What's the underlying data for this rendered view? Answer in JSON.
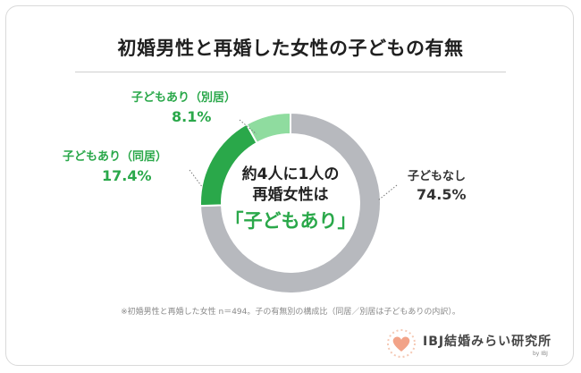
{
  "chart_data": {
    "type": "pie",
    "title": "初婚男性と再婚した女性の子どもの有無",
    "donut": true,
    "center_text": [
      "約4人に1人の",
      "再婚女性は",
      "「子どもあり」"
    ],
    "slices": [
      {
        "label": "子どもなし",
        "value": 74.5,
        "display": "74.5%",
        "color": "#b7b9be"
      },
      {
        "label": "子どもあり（同居）",
        "value": 17.4,
        "display": "17.4%",
        "color": "#2aa84a"
      },
      {
        "label": "子どもあり（別居）",
        "value": 8.1,
        "display": "8.1%",
        "color": "#8fdc9f"
      }
    ],
    "footnote": "※初婚男性と再婚した女性 n＝494。子の有無別の構成比（同居／別居は子どもありの内訳）。"
  },
  "logo": {
    "text": "IBJ結婚みらい研究所",
    "sub": "by IBJ",
    "heart_color": "#f2a388"
  }
}
